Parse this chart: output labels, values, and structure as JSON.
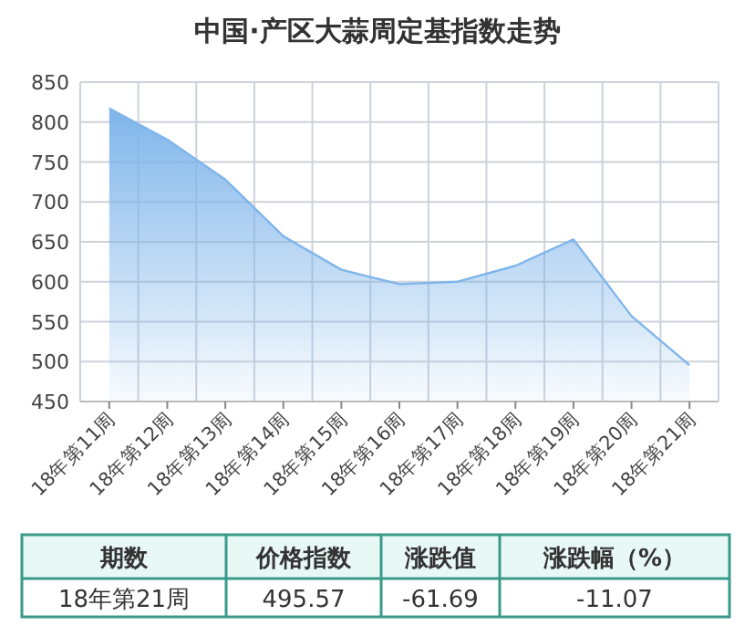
{
  "chart_data": {
    "type": "area",
    "title": "中国·产区大蒜周定基指数走势",
    "categories": [
      "18年第11周",
      "18年第12周",
      "18年第13周",
      "18年第14周",
      "18年第15周",
      "18年第16周",
      "18年第17周",
      "18年第18周",
      "18年第19周",
      "18年第20周",
      "18年第21周"
    ],
    "values": [
      817,
      778,
      728,
      657,
      615,
      597,
      600,
      620,
      653,
      557,
      495.57
    ],
    "color": "#7fb5ea",
    "ylim": [
      450,
      850
    ],
    "yticks": [
      450,
      500,
      550,
      600,
      650,
      700,
      750,
      800,
      850
    ],
    "grid": true,
    "annotations": [
      "期数",
      "价格指数",
      "涨跌值",
      "涨跌幅（%）",
      "18年第21周",
      "495.57",
      "-61.69",
      "-11.07"
    ]
  }
}
